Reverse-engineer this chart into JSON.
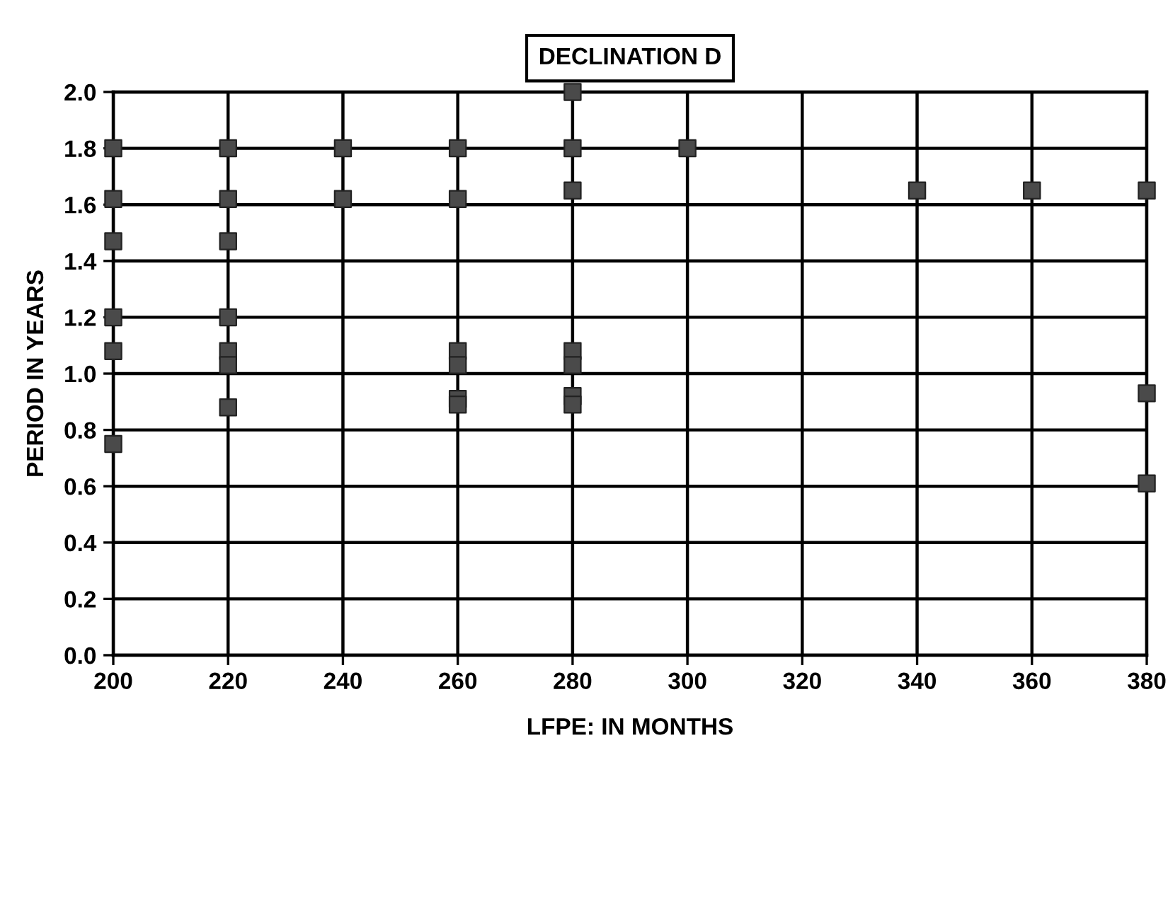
{
  "chart_data": {
    "type": "scatter",
    "title": "DECLINATION D",
    "xlabel": "LFPE: IN MONTHS",
    "ylabel": "PERIOD IN YEARS",
    "x": [
      200,
      200,
      200,
      200,
      200,
      200,
      220,
      220,
      220,
      220,
      220,
      220,
      220,
      240,
      240,
      260,
      260,
      260,
      260,
      260,
      260,
      280,
      280,
      280,
      280,
      280,
      280,
      280,
      300,
      340,
      360,
      380,
      380,
      380
    ],
    "values": [
      1.8,
      1.62,
      1.47,
      1.2,
      1.08,
      0.75,
      1.8,
      1.62,
      1.47,
      1.2,
      1.08,
      1.03,
      0.88,
      1.8,
      1.62,
      1.8,
      1.62,
      1.08,
      1.03,
      0.91,
      0.89,
      2.0,
      1.8,
      1.65,
      1.08,
      1.03,
      0.92,
      0.89,
      1.8,
      1.65,
      1.65,
      1.65,
      0.93,
      0.61
    ],
    "color": "#4a4a4a",
    "marker": "square",
    "xlim": [
      200,
      380
    ],
    "xticks": [
      200,
      220,
      240,
      260,
      280,
      300,
      320,
      340,
      360,
      380
    ],
    "ylim": [
      0,
      2.0
    ],
    "yticks": [
      {
        "value": 0,
        "label": "0.0"
      },
      {
        "value": 0.2,
        "label": "0.2"
      },
      {
        "value": 0.4,
        "label": "0.4"
      },
      {
        "value": 0.6,
        "label": "0.6"
      },
      {
        "value": 0.8,
        "label": "0.8"
      },
      {
        "value": 1.0,
        "label": "1.0"
      },
      {
        "value": 1.2,
        "label": "1.2"
      },
      {
        "value": 1.4,
        "label": "1.4"
      },
      {
        "value": 1.6,
        "label": "1.6"
      },
      {
        "value": 1.8,
        "label": "1.8"
      },
      {
        "value": 2.0,
        "label": "2.0"
      }
    ],
    "grid": true
  }
}
